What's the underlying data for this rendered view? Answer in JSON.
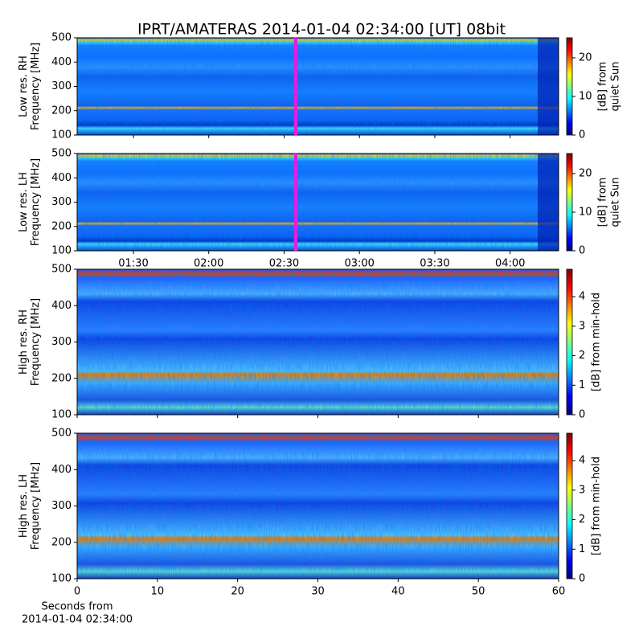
{
  "title": "IPRT/AMATERAS 2014-01-04 02:34:00 [UT]   08bit",
  "chart_data": [
    {
      "type": "spectrogram",
      "ylabel": [
        "Low res. RH",
        "Frequency [MHz]"
      ],
      "xlim": [
        67.6,
        259.3
      ],
      "xticks": [
        90,
        120,
        150,
        180,
        210,
        240
      ],
      "ylim": [
        100,
        500
      ],
      "yticks": [
        100,
        200,
        300,
        400,
        500
      ],
      "colorbar": {
        "label": [
          "[dB] from",
          "quiet Sun"
        ],
        "lim": [
          0,
          25.2
        ],
        "ticks": [
          0,
          10,
          20
        ]
      }
    },
    {
      "type": "spectrogram",
      "ylabel": [
        "Low res. LH",
        "Frequency [MHz]"
      ],
      "xlim": [
        67.6,
        259.3
      ],
      "xticks": [
        {
          "value": 90,
          "label": "01:30"
        },
        {
          "value": 120,
          "label": "02:00"
        },
        {
          "value": 150,
          "label": "02:30"
        },
        {
          "value": 180,
          "label": "03:00"
        },
        {
          "value": 210,
          "label": "03:30"
        },
        {
          "value": 240,
          "label": "04:00"
        }
      ],
      "ylim": [
        100,
        500
      ],
      "yticks": [
        100,
        200,
        300,
        400,
        500
      ],
      "colorbar": {
        "label": [
          "[dB] from",
          "quiet Sun"
        ],
        "lim": [
          0,
          25.2
        ],
        "ticks": [
          0,
          10,
          20
        ]
      }
    },
    {
      "type": "spectrogram",
      "ylabel": [
        "High res. RH",
        "Frequency [MHz]"
      ],
      "xlim": [
        0,
        60
      ],
      "xticks": [
        0,
        10,
        20,
        30,
        40,
        50,
        60
      ],
      "ylim": [
        100,
        500
      ],
      "yticks": [
        100,
        200,
        300,
        400,
        500
      ],
      "colorbar": {
        "label": [
          "[dB] from min-hold"
        ],
        "lim": [
          0,
          4.93
        ],
        "ticks": [
          0,
          1,
          2,
          3,
          4
        ]
      }
    },
    {
      "type": "spectrogram",
      "ylabel": [
        "High res. LH",
        "Frequency [MHz]"
      ],
      "xlabel": [
        "Seconds from",
        "2014-01-04 02:34:00"
      ],
      "xlim": [
        0,
        60
      ],
      "xticks": [
        0,
        10,
        20,
        30,
        40,
        50,
        60
      ],
      "xticklabels": true,
      "ylim": [
        100,
        500
      ],
      "yticks": [
        100,
        200,
        300,
        400,
        500
      ],
      "colorbar": {
        "label": [
          "[dB] from min-hold"
        ],
        "lim": [
          0,
          4.93
        ],
        "ticks": [
          0,
          1,
          2,
          3,
          4
        ]
      }
    }
  ]
}
